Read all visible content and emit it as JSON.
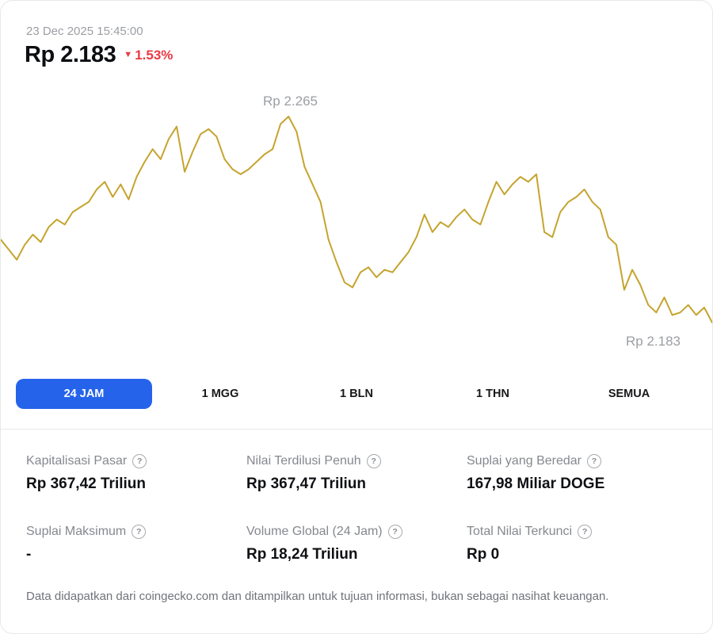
{
  "header": {
    "timestamp": "23 Dec 2025 15:45:00",
    "price": "Rp 2.183",
    "down_arrow": "▼",
    "change_percent": "1.53%",
    "change_color": "#ea3943"
  },
  "chart_data": {
    "type": "line",
    "title": "",
    "timeframe": "24 JAM",
    "line_color": "#c5a42e",
    "peak_label": "Rp 2.265",
    "end_label": "Rp 2.183",
    "ylim": [
      2.183,
      2.265
    ],
    "axes_hidden": true,
    "values": [
      2.216,
      2.212,
      2.208,
      2.214,
      2.218,
      2.215,
      2.221,
      2.224,
      2.222,
      2.227,
      2.229,
      2.231,
      2.236,
      2.239,
      2.233,
      2.238,
      2.232,
      2.241,
      2.247,
      2.252,
      2.248,
      2.256,
      2.261,
      2.243,
      2.251,
      2.258,
      2.26,
      2.257,
      2.248,
      2.244,
      2.242,
      2.244,
      2.247,
      2.25,
      2.252,
      2.262,
      2.265,
      2.259,
      2.245,
      2.238,
      2.231,
      2.216,
      2.207,
      2.199,
      2.197,
      2.203,
      2.205,
      2.201,
      2.204,
      2.203,
      2.207,
      2.211,
      2.217,
      2.226,
      2.219,
      2.223,
      2.221,
      2.225,
      2.228,
      2.224,
      2.222,
      2.231,
      2.239,
      2.234,
      2.238,
      2.241,
      2.239,
      2.242,
      2.219,
      2.217,
      2.227,
      2.231,
      2.233,
      2.236,
      2.231,
      2.228,
      2.217,
      2.214,
      2.196,
      2.204,
      2.198,
      2.19,
      2.187,
      2.193,
      2.186,
      2.187,
      2.19,
      2.186,
      2.189,
      2.183
    ]
  },
  "tabs": {
    "selected_bg": "#2563eb",
    "items": [
      {
        "label": "24 JAM",
        "selected": true
      },
      {
        "label": "1 MGG",
        "selected": false
      },
      {
        "label": "1 BLN",
        "selected": false
      },
      {
        "label": "1 THN",
        "selected": false
      },
      {
        "label": "SEMUA",
        "selected": false
      }
    ]
  },
  "icons": {
    "help": "?"
  },
  "stats": {
    "items": [
      {
        "label": "Kapitalisasi Pasar",
        "value": "Rp 367,42 Triliun"
      },
      {
        "label": "Nilai Terdilusi Penuh",
        "value": "Rp 367,47 Triliun"
      },
      {
        "label": "Suplai yang Beredar",
        "value": "167,98 Miliar DOGE"
      },
      {
        "label": "Suplai Maksimum",
        "value": "-"
      },
      {
        "label": "Volume Global (24 Jam)",
        "value": "Rp 18,24 Triliun"
      },
      {
        "label": "Total Nilai Terkunci",
        "value": "Rp 0"
      }
    ]
  },
  "footer": {
    "disclaimer": "Data didapatkan dari coingecko.com dan ditampilkan untuk tujuan informasi, bukan sebagai nasihat keuangan."
  }
}
